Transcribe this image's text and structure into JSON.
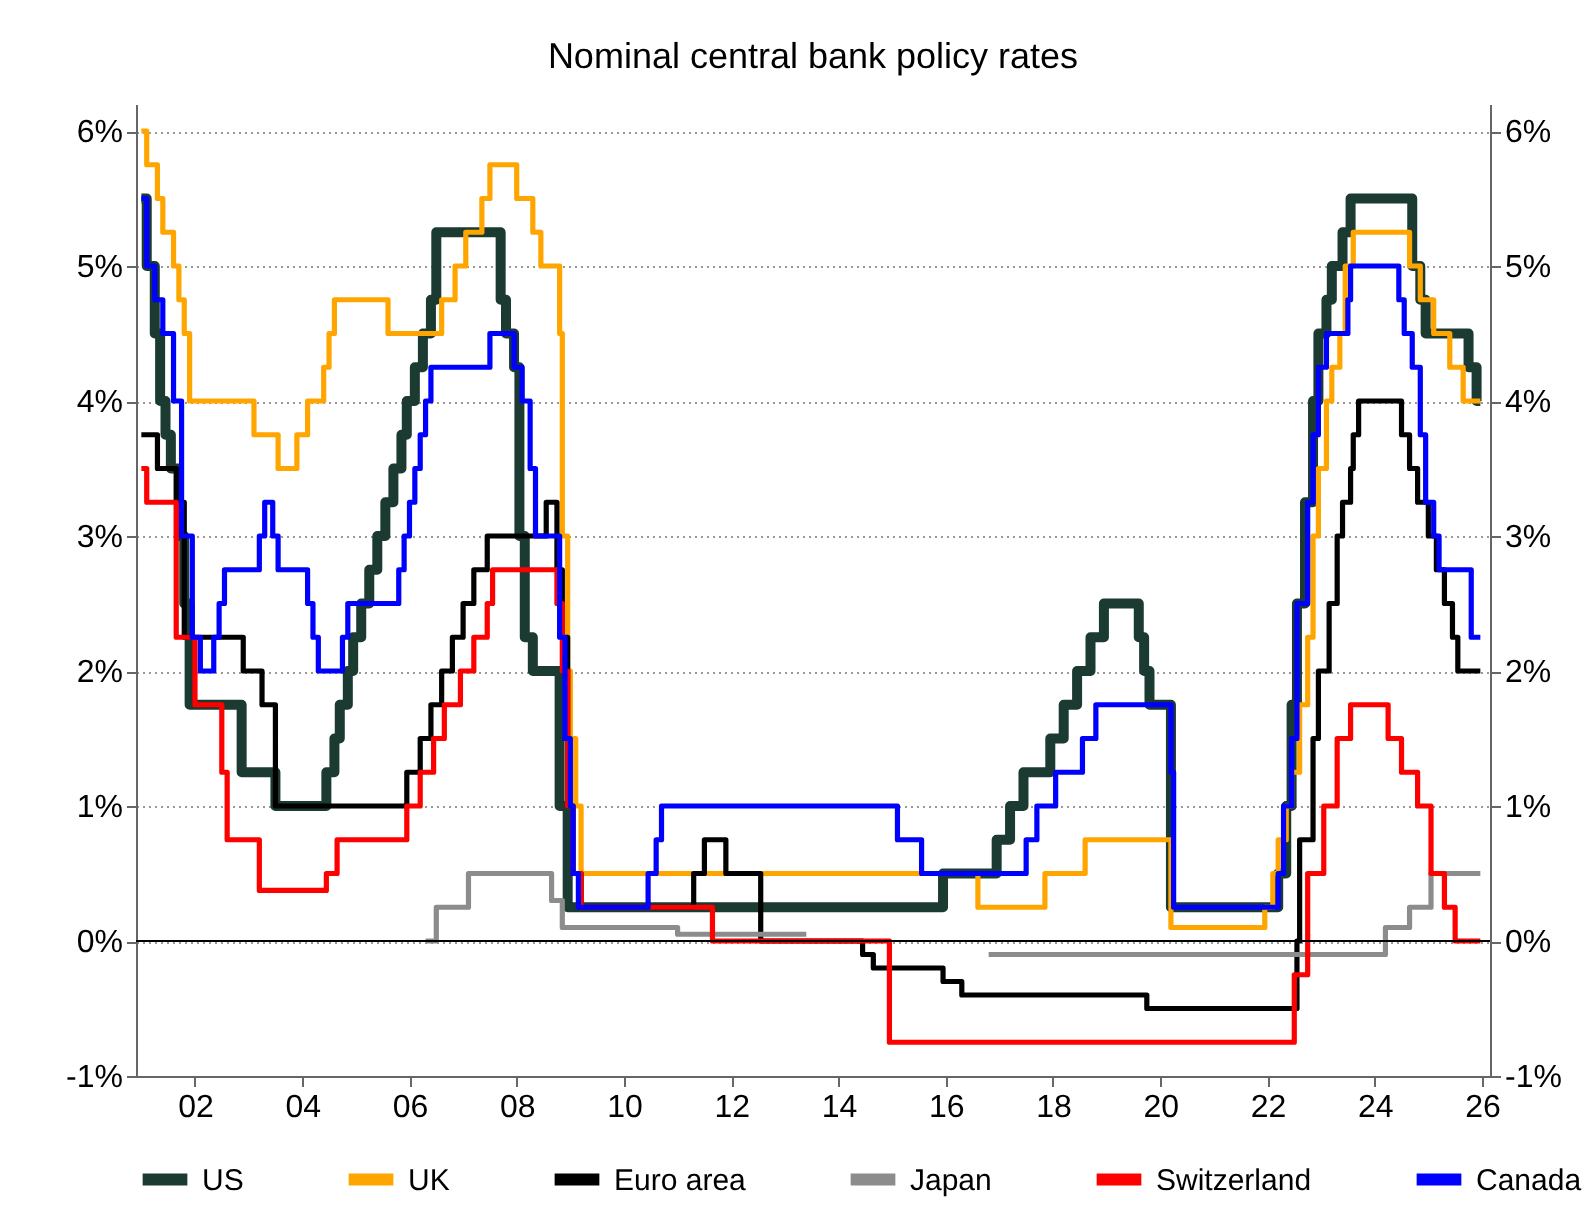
{
  "chart_data": {
    "type": "step",
    "title": "Nominal central bank policy rates",
    "xlim": [
      2000.9,
      2026.15
    ],
    "xticks": [
      {
        "value": 2002,
        "label": "02"
      },
      {
        "value": 2004,
        "label": "04"
      },
      {
        "value": 2006,
        "label": "06"
      },
      {
        "value": 2008,
        "label": "08"
      },
      {
        "value": 2010,
        "label": "10"
      },
      {
        "value": 2012,
        "label": "12"
      },
      {
        "value": 2014,
        "label": "14"
      },
      {
        "value": 2016,
        "label": "16"
      },
      {
        "value": 2018,
        "label": "18"
      },
      {
        "value": 2020,
        "label": "20"
      },
      {
        "value": 2022,
        "label": "22"
      },
      {
        "value": 2024,
        "label": "24"
      },
      {
        "value": 2026,
        "label": "26"
      }
    ],
    "ylim": [
      -1,
      6.2
    ],
    "yticks": [
      {
        "value": -1,
        "label": "-1%"
      },
      {
        "value": 0,
        "label": "0%"
      },
      {
        "value": 1,
        "label": "1%"
      },
      {
        "value": 2,
        "label": "2%"
      },
      {
        "value": 3,
        "label": "3%"
      },
      {
        "value": 4,
        "label": "4%"
      },
      {
        "value": 5,
        "label": "5%"
      },
      {
        "value": 6,
        "label": "6%"
      }
    ],
    "y2lim": [
      -1,
      6.2
    ],
    "y2ticks": [
      {
        "value": -1,
        "label": "-1%"
      },
      {
        "value": 0,
        "label": "0%"
      },
      {
        "value": 1,
        "label": "1%"
      },
      {
        "value": 2,
        "label": "2%"
      },
      {
        "value": 3,
        "label": "3%"
      },
      {
        "value": 4,
        "label": "4%"
      },
      {
        "value": 5,
        "label": "5%"
      },
      {
        "value": 6,
        "label": "6%"
      }
    ],
    "grid": "y",
    "legend": "bottom",
    "ref_lines": [
      {
        "axis": "y",
        "value": 0,
        "color": "#000000"
      }
    ],
    "series": [
      {
        "name": "US",
        "color": "#1b3a32",
        "x": [
          2001.0,
          2001.1,
          2001.25,
          2001.35,
          2001.45,
          2001.55,
          2001.7,
          2001.8,
          2001.9,
          2002.87,
          2003.5,
          2004.45,
          2004.6,
          2004.7,
          2004.85,
          2004.95,
          2005.1,
          2005.25,
          2005.4,
          2005.55,
          2005.7,
          2005.85,
          2005.95,
          2006.1,
          2006.25,
          2006.4,
          2006.5,
          2007.7,
          2007.8,
          2007.95,
          2008.05,
          2008.15,
          2008.3,
          2008.8,
          2008.95,
          2015.95,
          2016.95,
          2017.2,
          2017.45,
          2017.95,
          2018.2,
          2018.45,
          2018.7,
          2018.95,
          2019.6,
          2019.7,
          2019.8,
          2020.2,
          2022.2,
          2022.35,
          2022.45,
          2022.55,
          2022.7,
          2022.85,
          2022.95,
          2023.1,
          2023.2,
          2023.4,
          2023.55,
          2024.7,
          2024.85,
          2024.95,
          2025.75,
          2025.9,
          2025.97
        ],
        "values": [
          5.5,
          5.0,
          4.5,
          4.0,
          3.75,
          3.5,
          3.0,
          2.5,
          1.75,
          1.25,
          1.0,
          1.25,
          1.5,
          1.75,
          2.0,
          2.25,
          2.5,
          2.75,
          3.0,
          3.25,
          3.5,
          3.75,
          4.0,
          4.25,
          4.5,
          4.75,
          5.25,
          4.75,
          4.5,
          4.25,
          3.0,
          2.25,
          2.0,
          1.0,
          0.25,
          0.5,
          0.75,
          1.0,
          1.25,
          1.5,
          1.75,
          2.0,
          2.25,
          2.5,
          2.25,
          2.0,
          1.75,
          0.25,
          0.5,
          1.0,
          1.75,
          2.5,
          3.25,
          4.0,
          4.5,
          4.75,
          5.0,
          5.25,
          5.5,
          5.0,
          4.75,
          4.5,
          4.25,
          4.0,
          4.0
        ]
      },
      {
        "name": "UK",
        "color": "#ffa500",
        "x": [
          2001.0,
          2001.1,
          2001.3,
          2001.4,
          2001.6,
          2001.7,
          2001.8,
          2001.9,
          2003.1,
          2003.55,
          2003.9,
          2004.1,
          2004.4,
          2004.5,
          2004.6,
          2005.6,
          2006.6,
          2006.85,
          2007.05,
          2007.35,
          2007.5,
          2008.0,
          2008.3,
          2008.45,
          2008.8,
          2008.85,
          2008.95,
          2009.0,
          2009.1,
          2009.2,
          2016.6,
          2017.85,
          2018.6,
          2020.2,
          2021.95,
          2022.1,
          2022.2,
          2022.35,
          2022.45,
          2022.6,
          2022.75,
          2022.85,
          2022.95,
          2023.1,
          2023.2,
          2023.35,
          2023.45,
          2023.6,
          2024.65,
          2024.85,
          2025.1,
          2025.4,
          2025.65,
          2025.97
        ],
        "values": [
          6.0,
          5.75,
          5.5,
          5.25,
          5.0,
          4.75,
          4.5,
          4.0,
          3.75,
          3.5,
          3.75,
          4.0,
          4.25,
          4.5,
          4.75,
          4.5,
          4.75,
          5.0,
          5.25,
          5.5,
          5.75,
          5.5,
          5.25,
          5.0,
          4.5,
          3.0,
          2.0,
          1.5,
          1.0,
          0.5,
          0.25,
          0.5,
          0.75,
          0.1,
          0.25,
          0.5,
          0.75,
          1.0,
          1.25,
          1.75,
          2.25,
          3.0,
          3.5,
          4.0,
          4.25,
          4.5,
          5.0,
          5.25,
          5.0,
          4.75,
          4.5,
          4.25,
          4.0,
          4.0
        ]
      },
      {
        "name": "Euro area",
        "color": "#000000",
        "x": [
          2001.0,
          2001.3,
          2001.65,
          2001.8,
          2002.9,
          2003.25,
          2003.5,
          2005.95,
          2006.2,
          2006.4,
          2006.6,
          2006.8,
          2007.0,
          2007.2,
          2007.45,
          2008.55,
          2008.75,
          2008.85,
          2008.95,
          2009.05,
          2009.2,
          2011.3,
          2011.5,
          2011.9,
          2012.55,
          2014.45,
          2014.65,
          2015.95,
          2016.3,
          2019.75,
          2022.55,
          2022.6,
          2022.85,
          2022.95,
          2023.15,
          2023.3,
          2023.4,
          2023.55,
          2023.6,
          2023.7,
          2024.5,
          2024.65,
          2024.8,
          2025.0,
          2025.15,
          2025.3,
          2025.45,
          2025.55,
          2025.97
        ],
        "values": [
          3.75,
          3.5,
          3.25,
          2.25,
          2.0,
          1.75,
          1.0,
          1.25,
          1.5,
          1.75,
          2.0,
          2.25,
          2.5,
          2.75,
          3.0,
          3.25,
          2.75,
          2.25,
          1.0,
          0.5,
          0.25,
          0.5,
          0.75,
          0.5,
          0.0,
          -0.1,
          -0.2,
          -0.3,
          -0.4,
          -0.5,
          0.0,
          0.75,
          1.5,
          2.0,
          2.5,
          3.0,
          3.25,
          3.5,
          3.75,
          4.0,
          3.75,
          3.5,
          3.25,
          3.0,
          2.75,
          2.5,
          2.25,
          2.0,
          2.0
        ]
      },
      {
        "name": "Japan",
        "color": "#8c8c8c",
        "x": [
          2006.3,
          2006.5,
          2007.1,
          2008.65,
          2008.85,
          2011.0,
          2013.4,
          2013.41,
          2016.8,
          2024.2,
          2024.65,
          2025.05,
          2025.97
        ],
        "values": [
          0.0,
          0.25,
          0.5,
          0.3,
          0.1,
          0.05,
          0.05,
          null,
          -0.1,
          0.1,
          0.25,
          0.5,
          0.5
        ]
      },
      {
        "name": "Switzerland",
        "color": "#ff0000",
        "x": [
          2001.0,
          2001.1,
          2001.65,
          2002.0,
          2002.5,
          2002.6,
          2003.2,
          2004.45,
          2004.65,
          2005.95,
          2006.2,
          2006.45,
          2006.65,
          2006.95,
          2007.2,
          2007.45,
          2007.55,
          2008.75,
          2008.85,
          2008.95,
          2009.05,
          2009.2,
          2011.65,
          2014.95,
          2022.5,
          2022.75,
          2023.05,
          2023.3,
          2023.55,
          2024.25,
          2024.5,
          2024.8,
          2025.05,
          2025.3,
          2025.5,
          2025.97
        ],
        "values": [
          3.5,
          3.25,
          2.25,
          1.75,
          1.25,
          0.75,
          0.375,
          0.5,
          0.75,
          1.0,
          1.25,
          1.5,
          1.75,
          2.0,
          2.25,
          2.5,
          2.75,
          2.5,
          2.0,
          1.0,
          0.5,
          0.25,
          0.0,
          -0.75,
          -0.25,
          0.5,
          1.0,
          1.5,
          1.75,
          1.5,
          1.25,
          1.0,
          0.5,
          0.25,
          0.0,
          0.0
        ]
      },
      {
        "name": "Canada",
        "color": "#0000ff",
        "x": [
          2001.0,
          2001.1,
          2001.25,
          2001.4,
          2001.6,
          2001.75,
          2001.95,
          2002.1,
          2002.35,
          2002.45,
          2002.55,
          2003.2,
          2003.3,
          2003.45,
          2003.55,
          2004.1,
          2004.2,
          2004.3,
          2004.75,
          2004.85,
          2004.95,
          2005.8,
          2005.9,
          2006.0,
          2006.1,
          2006.2,
          2006.3,
          2006.4,
          2007.5,
          2007.95,
          2008.1,
          2008.25,
          2008.35,
          2008.8,
          2008.9,
          2009.0,
          2009.05,
          2009.15,
          2010.45,
          2010.6,
          2010.7,
          2015.1,
          2015.55,
          2017.5,
          2017.7,
          2018.05,
          2018.55,
          2018.8,
          2020.2,
          2020.25,
          2022.2,
          2022.3,
          2022.45,
          2022.55,
          2022.75,
          2022.85,
          2022.95,
          2023.1,
          2023.5,
          2023.55,
          2024.45,
          2024.55,
          2024.7,
          2024.85,
          2024.95,
          2025.1,
          2025.2,
          2025.8,
          2025.97
        ],
        "values": [
          5.5,
          5.0,
          4.75,
          4.5,
          4.0,
          3.0,
          2.25,
          2.0,
          2.25,
          2.5,
          2.75,
          3.0,
          3.25,
          3.0,
          2.75,
          2.5,
          2.25,
          2.0,
          2.25,
          2.5,
          2.5,
          2.75,
          3.0,
          3.25,
          3.5,
          3.75,
          4.0,
          4.25,
          4.5,
          4.25,
          4.0,
          3.5,
          3.0,
          2.25,
          1.5,
          1.0,
          0.5,
          0.25,
          0.5,
          0.75,
          1.0,
          0.75,
          0.5,
          0.75,
          1.0,
          1.25,
          1.5,
          1.75,
          1.25,
          0.25,
          0.5,
          1.0,
          1.5,
          2.5,
          3.25,
          3.75,
          4.25,
          4.5,
          4.75,
          5.0,
          4.75,
          4.5,
          4.25,
          3.75,
          3.25,
          3.0,
          2.75,
          2.25,
          2.25
        ]
      }
    ]
  }
}
